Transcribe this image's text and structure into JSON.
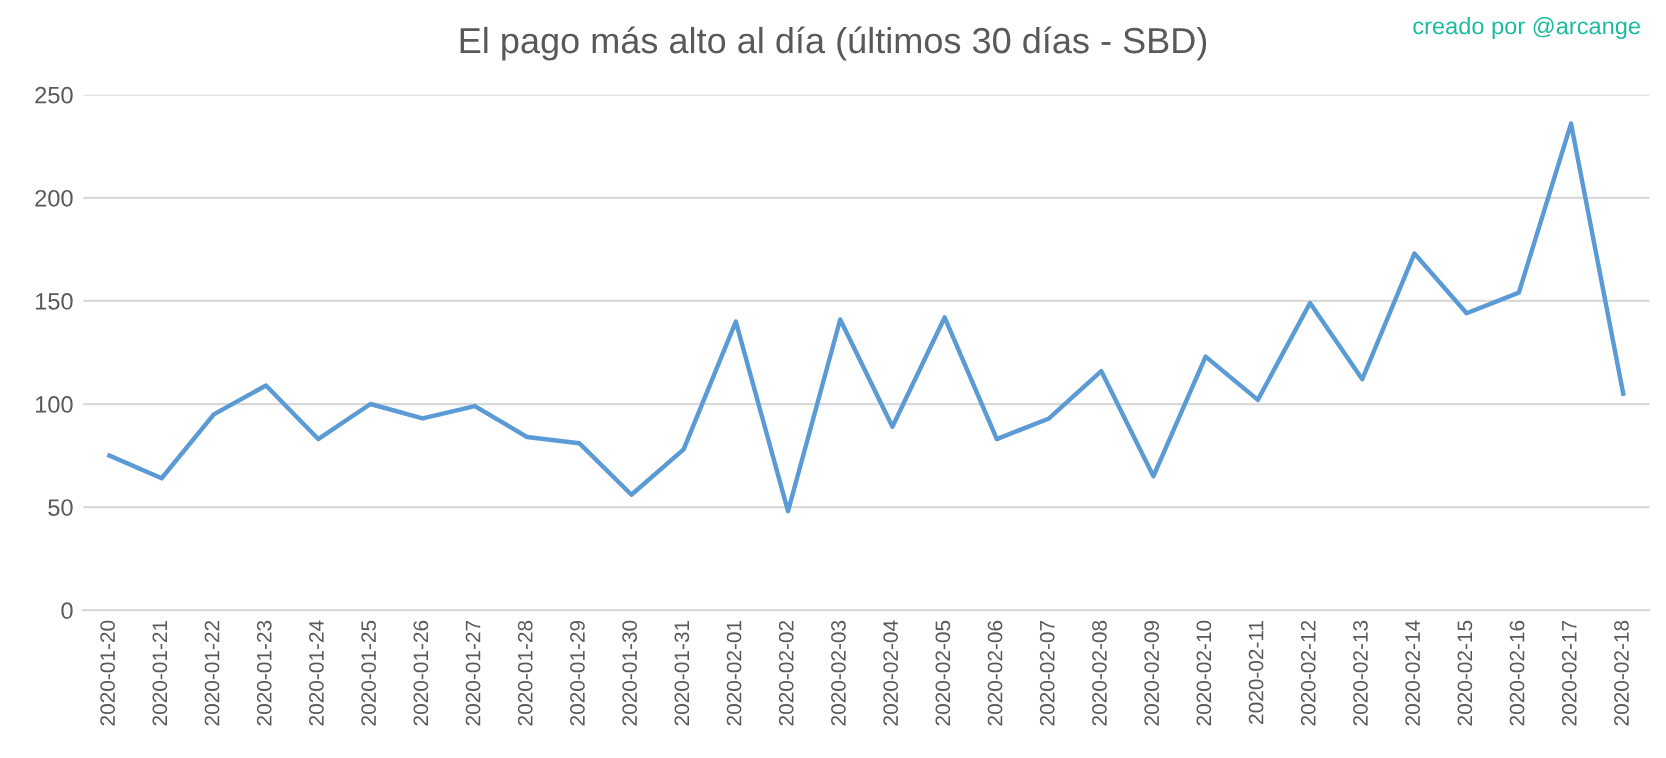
{
  "chart_data": {
    "type": "line",
    "title": "El pago más alto al día (últimos 30 días - SBD)",
    "annotations": [
      "creado por @arcange"
    ],
    "categories": [
      "2020-01-20",
      "2020-01-21",
      "2020-01-22",
      "2020-01-23",
      "2020-01-24",
      "2020-01-25",
      "2020-01-26",
      "2020-01-27",
      "2020-01-28",
      "2020-01-29",
      "2020-01-30",
      "2020-01-31",
      "2020-02-01",
      "2020-02-02",
      "2020-02-03",
      "2020-02-04",
      "2020-02-05",
      "2020-02-06",
      "2020-02-07",
      "2020-02-08",
      "2020-02-09",
      "2020-02-10",
      "2020-02-11",
      "2020-02-12",
      "2020-02-13",
      "2020-02-14",
      "2020-02-15",
      "2020-02-16",
      "2020-02-17",
      "2020-02-18"
    ],
    "series": [
      {
        "color": "#5b9bd5",
        "values": [
          75,
          64,
          95,
          109,
          83,
          100,
          93,
          99,
          84,
          81,
          56,
          78,
          140,
          48,
          141,
          89,
          142,
          83,
          93,
          116,
          65,
          123,
          102,
          149,
          112,
          173,
          144,
          154,
          236,
          105
        ]
      }
    ],
    "ylim": [
      0,
      250
    ],
    "yticks": [
      0,
      50,
      100,
      150,
      200,
      250
    ],
    "grid": "y",
    "legend": false,
    "marker": "none",
    "line_style": "solid"
  }
}
